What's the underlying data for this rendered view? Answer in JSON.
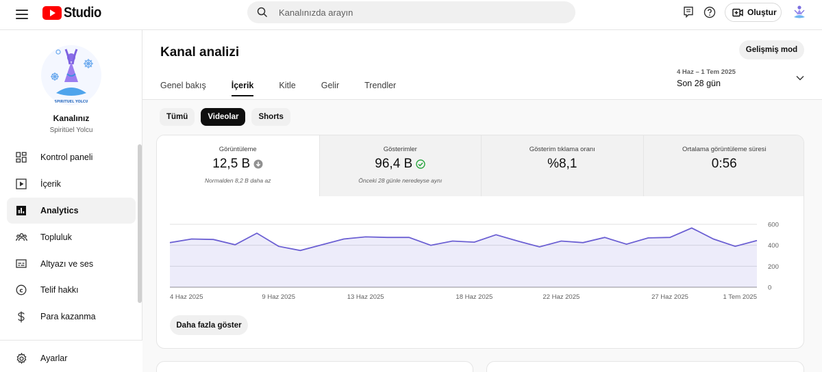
{
  "app": {
    "logo_text": "Studio",
    "search_placeholder": "Kanalınızda arayın",
    "create_label": "Oluştur",
    "icons": [
      "menu-icon",
      "search-icon",
      "feedback-icon",
      "help-icon",
      "create-video-icon"
    ]
  },
  "sidebar": {
    "channel_title": "Kanalınız",
    "channel_name": "Spiritüel Yolcu",
    "avatar_caption": "SPIRITUEL YOLCU",
    "items": [
      {
        "label": "Kontrol paneli",
        "icon": "dashboard-icon"
      },
      {
        "label": "İçerik",
        "icon": "content-icon"
      },
      {
        "label": "Analytics",
        "icon": "analytics-icon",
        "active": true
      },
      {
        "label": "Topluluk",
        "icon": "community-icon"
      },
      {
        "label": "Altyazı ve ses",
        "icon": "subtitles-icon"
      },
      {
        "label": "Telif hakkı",
        "icon": "copyright-icon"
      },
      {
        "label": "Para kazanma",
        "icon": "monetization-icon"
      }
    ],
    "settings_label": "Ayarlar"
  },
  "main": {
    "title": "Kanal analizi",
    "advanced_button": "Gelişmiş mod",
    "tabs": [
      {
        "label": "Genel bakış"
      },
      {
        "label": "İçerik",
        "active": true
      },
      {
        "label": "Kitle"
      },
      {
        "label": "Gelir"
      },
      {
        "label": "Trendler"
      }
    ],
    "date_range": {
      "dates": "4 Haz – 1 Tem 2025",
      "label": "Son 28 gün"
    },
    "chips": [
      {
        "label": "Tümü"
      },
      {
        "label": "Videolar",
        "active": true
      },
      {
        "label": "Shorts"
      }
    ],
    "metrics": [
      {
        "label": "Görüntüleme",
        "value": "12,5 B",
        "note": "Normalden 8,2 B daha az",
        "status": "down"
      },
      {
        "label": "Gösterimler",
        "value": "96,4 B",
        "note": "Önceki 28 günle neredeyse aynı",
        "status": "ok"
      },
      {
        "label": "Gösterim tıklama oranı",
        "value": "%8,1",
        "note": ""
      },
      {
        "label": "Ortalama görüntüleme süresi",
        "value": "0:56",
        "note": ""
      }
    ],
    "show_more": "Daha fazla göster",
    "accent_color": "#6b5fd3"
  },
  "chart_data": {
    "type": "area",
    "x_ticks": [
      "4 Haz 2025",
      "9 Haz 2025",
      "13 Haz 2025",
      "18 Haz 2025",
      "22 Haz 2025",
      "27 Haz 2025",
      "1 Tem 2025"
    ],
    "y_ticks": [
      0,
      200,
      400,
      600
    ],
    "ylim": [
      0,
      600
    ],
    "x": [
      "4 Haz",
      "5 Haz",
      "6 Haz",
      "7 Haz",
      "8 Haz",
      "9 Haz",
      "10 Haz",
      "11 Haz",
      "12 Haz",
      "13 Haz",
      "14 Haz",
      "15 Haz",
      "16 Haz",
      "17 Haz",
      "18 Haz",
      "19 Haz",
      "20 Haz",
      "21 Haz",
      "22 Haz",
      "23 Haz",
      "24 Haz",
      "25 Haz",
      "26 Haz",
      "27 Haz",
      "28 Haz",
      "29 Haz",
      "30 Haz",
      "1 Tem"
    ],
    "series": [
      {
        "values": [
          425,
          460,
          455,
          405,
          515,
          390,
          350,
          405,
          460,
          480,
          475,
          475,
          400,
          440,
          430,
          500,
          440,
          385,
          440,
          425,
          475,
          410,
          470,
          475,
          565,
          460,
          390,
          445
        ]
      }
    ],
    "grid": true
  }
}
